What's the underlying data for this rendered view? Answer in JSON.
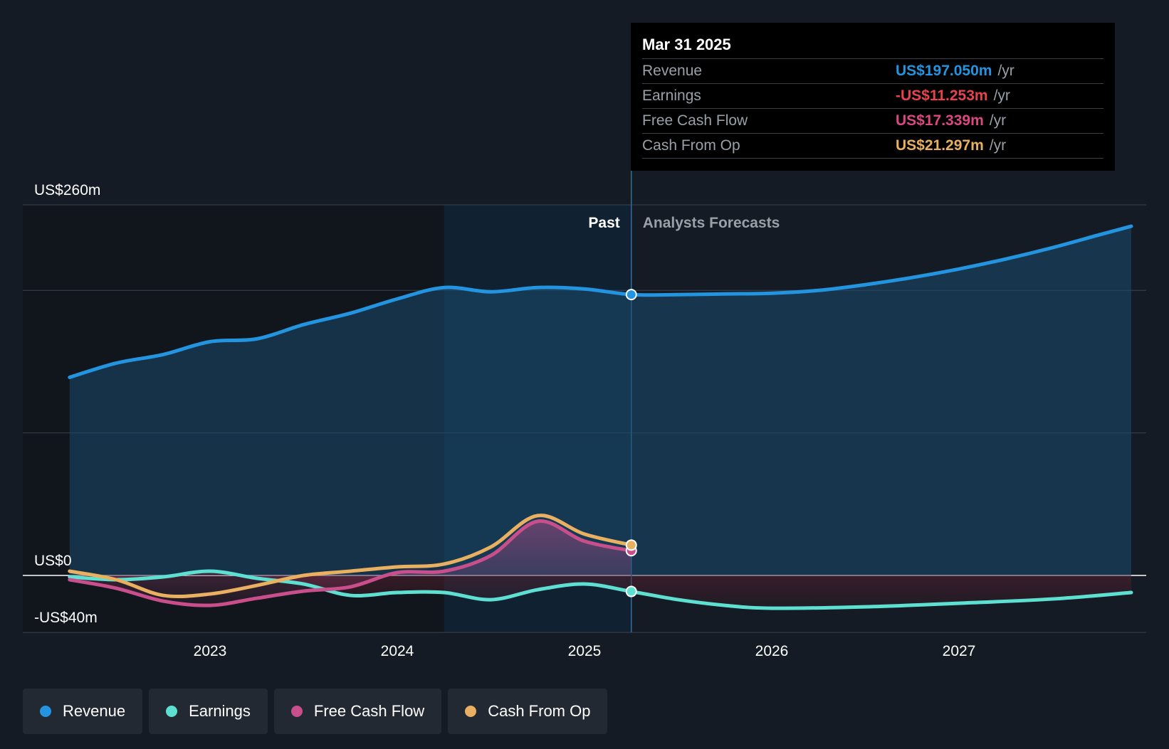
{
  "chart_data": {
    "type": "line",
    "currency_unit": "US$ millions",
    "y_axis": {
      "ylim": [
        -40,
        260
      ],
      "tick_labels": [
        {
          "value": 260,
          "label": "US$260m"
        },
        {
          "value": 0,
          "label": "US$0"
        },
        {
          "value": -40,
          "label": "-US$40m"
        }
      ],
      "gridlines": [
        260,
        200,
        100,
        0,
        -40
      ]
    },
    "x_axis": {
      "xlim": [
        2022.0,
        2028.0
      ],
      "tick_labels": [
        {
          "value": 2023.0,
          "label": "2023"
        },
        {
          "value": 2024.0,
          "label": "2024"
        },
        {
          "value": 2025.0,
          "label": "2025"
        },
        {
          "value": 2026.0,
          "label": "2026"
        },
        {
          "value": 2027.0,
          "label": "2027"
        }
      ]
    },
    "regions": {
      "past_label": "Past",
      "forecast_label": "Analysts Forecasts",
      "divider_x": 2025.25,
      "highlight_start_x": 2024.25
    },
    "series": [
      {
        "name": "Revenue",
        "color": "#2394df",
        "area": true,
        "points": [
          [
            2022.25,
            139
          ],
          [
            2022.5,
            149
          ],
          [
            2022.75,
            155
          ],
          [
            2023.0,
            164
          ],
          [
            2023.25,
            166
          ],
          [
            2023.5,
            176
          ],
          [
            2023.75,
            184
          ],
          [
            2024.0,
            194
          ],
          [
            2024.25,
            202
          ],
          [
            2024.5,
            199
          ],
          [
            2024.75,
            202
          ],
          [
            2025.0,
            201
          ],
          [
            2025.25,
            197.05
          ],
          [
            2025.5,
            197
          ],
          [
            2025.75,
            197.5
          ],
          [
            2026.0,
            198
          ],
          [
            2026.25,
            200
          ],
          [
            2026.5,
            204
          ],
          [
            2026.75,
            209
          ],
          [
            2027.0,
            215
          ],
          [
            2027.25,
            222
          ],
          [
            2027.5,
            230
          ],
          [
            2027.75,
            239
          ],
          [
            2027.92,
            245
          ]
        ]
      },
      {
        "name": "Earnings",
        "color": "#5de0d1",
        "area": true,
        "points": [
          [
            2022.25,
            -1
          ],
          [
            2022.5,
            -3
          ],
          [
            2022.75,
            -1
          ],
          [
            2023.0,
            3
          ],
          [
            2023.25,
            -2
          ],
          [
            2023.5,
            -6
          ],
          [
            2023.75,
            -14
          ],
          [
            2024.0,
            -12
          ],
          [
            2024.25,
            -12
          ],
          [
            2024.5,
            -17
          ],
          [
            2024.75,
            -10
          ],
          [
            2025.0,
            -6
          ],
          [
            2025.25,
            -11.253
          ],
          [
            2025.5,
            -17
          ],
          [
            2025.75,
            -21
          ],
          [
            2026.0,
            -23
          ],
          [
            2026.5,
            -22
          ],
          [
            2027.0,
            -19.5
          ],
          [
            2027.5,
            -16.5
          ],
          [
            2027.92,
            -12
          ]
        ]
      },
      {
        "name": "Free Cash Flow",
        "color": "#c94f8c",
        "area": true,
        "points": [
          [
            2022.25,
            -3
          ],
          [
            2022.5,
            -9
          ],
          [
            2022.75,
            -18
          ],
          [
            2023.0,
            -21
          ],
          [
            2023.25,
            -16
          ],
          [
            2023.5,
            -11
          ],
          [
            2023.75,
            -8
          ],
          [
            2024.0,
            2
          ],
          [
            2024.25,
            3
          ],
          [
            2024.5,
            14
          ],
          [
            2024.75,
            38
          ],
          [
            2025.0,
            24
          ],
          [
            2025.25,
            17.339
          ]
        ]
      },
      {
        "name": "Cash From Op",
        "color": "#e8b060",
        "area": false,
        "points": [
          [
            2022.25,
            3
          ],
          [
            2022.5,
            -3
          ],
          [
            2022.75,
            -14
          ],
          [
            2023.0,
            -13
          ],
          [
            2023.25,
            -7
          ],
          [
            2023.5,
            0
          ],
          [
            2023.75,
            3
          ],
          [
            2024.0,
            6
          ],
          [
            2024.25,
            8
          ],
          [
            2024.5,
            20
          ],
          [
            2024.75,
            42
          ],
          [
            2025.0,
            29
          ],
          [
            2025.25,
            21.297
          ]
        ]
      }
    ],
    "legend": {
      "placement": "bottom-left"
    }
  },
  "tooltip": {
    "date": "Mar 31 2025",
    "rows": [
      {
        "label": "Revenue",
        "value": "US$197.050m",
        "unit": "/yr",
        "color": "#2394df"
      },
      {
        "label": "Earnings",
        "value": "-US$11.253m",
        "unit": "/yr",
        "color": "#e8434d"
      },
      {
        "label": "Free Cash Flow",
        "value": "US$17.339m",
        "unit": "/yr",
        "color": "#d9487f"
      },
      {
        "label": "Cash From Op",
        "value": "US$21.297m",
        "unit": "/yr",
        "color": "#e8b060"
      }
    ]
  },
  "legend_items": [
    {
      "label": "Revenue",
      "color": "#2394df"
    },
    {
      "label": "Earnings",
      "color": "#5de0d1"
    },
    {
      "label": "Free Cash Flow",
      "color": "#c94f8c"
    },
    {
      "label": "Cash From Op",
      "color": "#e8b060"
    }
  ]
}
